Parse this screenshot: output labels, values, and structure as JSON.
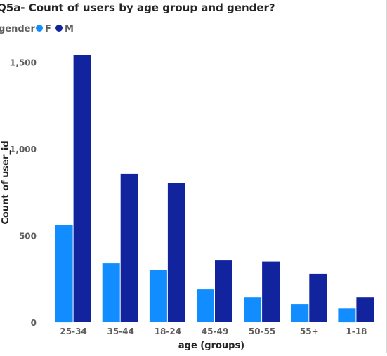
{
  "chart_data": {
    "type": "bar",
    "title": "Q5a- Count of users by age group and gender?",
    "legend": {
      "title": "gender",
      "position": "top-left"
    },
    "xlabel": "age (groups)",
    "ylabel": "Count of user_id",
    "categories": [
      "25-34",
      "35-44",
      "18-24",
      "45-49",
      "50-55",
      "55+",
      "1-18"
    ],
    "series": [
      {
        "name": "F",
        "color": "#118DFF",
        "values": [
          560,
          340,
          300,
          190,
          145,
          105,
          80
        ]
      },
      {
        "name": "M",
        "color": "#12239E",
        "values": [
          1540,
          855,
          805,
          360,
          350,
          280,
          145
        ]
      }
    ],
    "ylim": [
      0,
      1600
    ],
    "yticks": [
      0,
      500,
      1000,
      1500
    ],
    "ytick_labels": [
      "0",
      "500",
      "1,000",
      "1,500"
    ],
    "grid": false
  }
}
